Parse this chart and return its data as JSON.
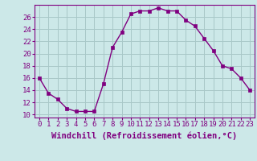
{
  "x": [
    0,
    1,
    2,
    3,
    4,
    5,
    6,
    7,
    8,
    9,
    10,
    11,
    12,
    13,
    14,
    15,
    16,
    17,
    18,
    19,
    20,
    21,
    22,
    23
  ],
  "y": [
    16,
    13.5,
    12.5,
    11,
    10.5,
    10.5,
    10.5,
    15,
    21,
    23.5,
    26.5,
    27,
    27,
    27.5,
    27,
    27,
    25.5,
    24.5,
    22.5,
    20.5,
    18,
    17.5,
    16,
    14
  ],
  "line_color": "#800080",
  "marker_color": "#800080",
  "bg_color": "#cce8e8",
  "grid_color": "#a8c8c8",
  "xlabel": "Windchill (Refroidissement éolien,°C)",
  "xlim": [
    -0.5,
    23.5
  ],
  "ylim": [
    9.5,
    28.0
  ],
  "xticks": [
    0,
    1,
    2,
    3,
    4,
    5,
    6,
    7,
    8,
    9,
    10,
    11,
    12,
    13,
    14,
    15,
    16,
    17,
    18,
    19,
    20,
    21,
    22,
    23
  ],
  "yticks": [
    10,
    12,
    14,
    16,
    18,
    20,
    22,
    24,
    26
  ],
  "tick_fontsize": 6.5,
  "xlabel_fontsize": 7.5,
  "marker_size": 2.5,
  "linewidth": 1.0
}
